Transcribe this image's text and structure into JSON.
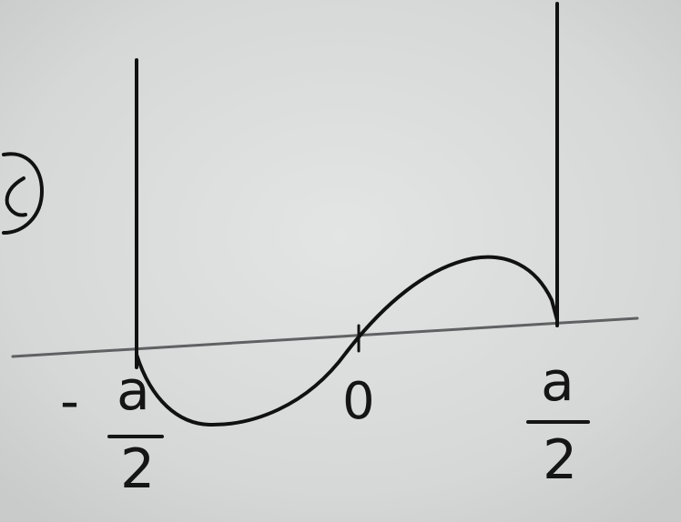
{
  "diagram": {
    "axis_labels": {
      "left_sign": "-",
      "left_numerator": "a",
      "left_denominator": "2",
      "center": "0",
      "right_numerator": "a",
      "right_denominator": "2"
    },
    "colors": {
      "paper": "#d7d9d9",
      "ink": "#111111",
      "axis": "#5f6162"
    }
  }
}
